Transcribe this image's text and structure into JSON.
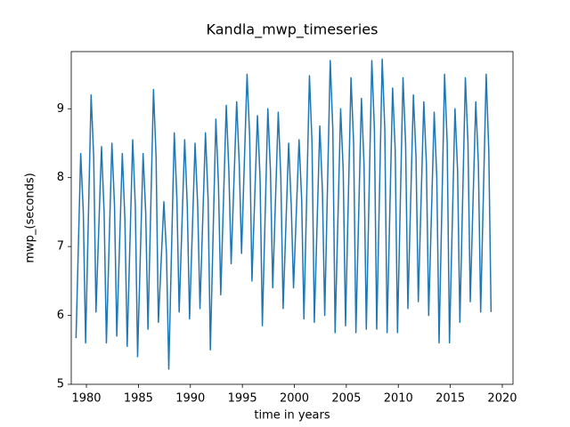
{
  "chart_data": {
    "type": "line",
    "title": "Kandla_mwp_timeseries",
    "x_label": "time in years",
    "y_label": "mwp_(seconds)",
    "color": "#1f77b4",
    "x": [
      1979,
      1979.45,
      1979.7,
      1979.92,
      1980.45,
      1980.7,
      1980.92,
      1981.45,
      1981.7,
      1981.92,
      1982.45,
      1982.7,
      1982.92,
      1983.45,
      1983.7,
      1983.92,
      1984.45,
      1984.7,
      1984.92,
      1985.45,
      1985.7,
      1985.92,
      1986.45,
      1986.7,
      1986.92,
      1987.45,
      1987.7,
      1987.92,
      1988.45,
      1988.7,
      1988.92,
      1989.45,
      1989.7,
      1989.92,
      1990.45,
      1990.7,
      1990.92,
      1991.45,
      1991.7,
      1991.92,
      1992.45,
      1992.7,
      1992.92,
      1993.45,
      1993.7,
      1993.92,
      1994.45,
      1994.7,
      1994.92,
      1995.45,
      1995.7,
      1995.92,
      1996.45,
      1996.7,
      1996.92,
      1997.45,
      1997.7,
      1997.92,
      1998.45,
      1998.7,
      1998.92,
      1999.45,
      1999.7,
      1999.92,
      2000.45,
      2000.7,
      2000.92,
      2001.45,
      2001.7,
      2001.92,
      2002.45,
      2002.7,
      2002.92,
      2003.45,
      2003.7,
      2003.92,
      2004.45,
      2004.7,
      2004.92,
      2005.45,
      2005.7,
      2005.92,
      2006.45,
      2006.7,
      2006.92,
      2007.45,
      2007.7,
      2007.92,
      2008.45,
      2008.7,
      2008.92,
      2009.45,
      2009.7,
      2009.92,
      2010.45,
      2010.7,
      2010.92,
      2011.45,
      2011.7,
      2011.92,
      2012.45,
      2012.7,
      2012.92,
      2013.45,
      2013.7,
      2013.92,
      2014.45,
      2014.7,
      2014.92,
      2015.45,
      2015.7,
      2015.92,
      2016.45,
      2016.7,
      2016.92,
      2017.45,
      2017.7,
      2017.92,
      2018.45,
      2018.7,
      2018.92
    ],
    "values": [
      5.67,
      8.35,
      7.5,
      5.6,
      9.2,
      8.3,
      6.05,
      8.45,
      7.5,
      5.6,
      8.5,
      7.6,
      5.7,
      8.35,
      7.4,
      5.55,
      8.55,
      7.6,
      5.4,
      8.35,
      7.5,
      5.8,
      9.28,
      8.3,
      5.9,
      7.65,
      6.9,
      5.22,
      8.65,
      7.7,
      6.05,
      8.55,
      7.6,
      5.95,
      8.5,
      7.6,
      6.1,
      8.65,
      7.7,
      5.5,
      8.85,
      7.9,
      6.3,
      9.05,
      8.1,
      6.75,
      9.1,
      8.2,
      6.9,
      9.5,
      8.6,
      6.5,
      8.9,
      8.0,
      5.85,
      9.0,
      8.1,
      6.4,
      8.95,
      8.0,
      6.1,
      8.5,
      7.6,
      6.4,
      8.55,
      7.7,
      5.95,
      9.48,
      8.5,
      5.9,
      8.75,
      7.8,
      6.0,
      9.7,
      8.7,
      5.75,
      9.0,
      8.1,
      5.85,
      9.45,
      8.5,
      5.75,
      9.15,
      8.2,
      5.8,
      9.7,
      8.7,
      5.8,
      9.72,
      8.7,
      5.75,
      9.3,
      8.4,
      5.75,
      9.45,
      8.5,
      6.1,
      9.2,
      8.3,
      6.2,
      9.1,
      8.2,
      6.0,
      8.95,
      8.0,
      5.6,
      9.5,
      8.5,
      5.6,
      9.0,
      8.1,
      5.9,
      9.45,
      8.5,
      6.2,
      9.1,
      8.2,
      6.05,
      9.5,
      8.4,
      6.05
    ],
    "xlim": [
      1978.54,
      2021.03
    ],
    "xticks": [
      1980,
      1985,
      1990,
      1995,
      2000,
      2005,
      2010,
      2015,
      2020
    ],
    "ylim": [
      5.0,
      9.83
    ],
    "yticks": [
      5,
      6,
      7,
      8,
      9
    ]
  }
}
